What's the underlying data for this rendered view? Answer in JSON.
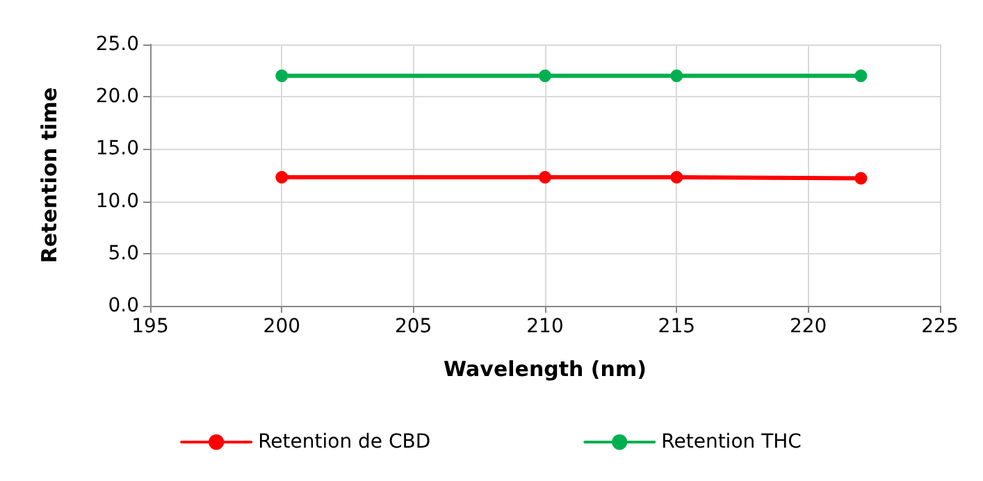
{
  "chart_data": {
    "type": "line",
    "xlabel": "Wavelength (nm)",
    "ylabel": "Retention time",
    "x": [
      200,
      210,
      215,
      222
    ],
    "series": [
      {
        "name": "Retention de CBD",
        "color": "#ff0000",
        "values": [
          12.3,
          12.3,
          12.3,
          12.2
        ]
      },
      {
        "name": "Retention THC",
        "color": "#00b050",
        "values": [
          22.0,
          22.0,
          22.0,
          22.0
        ]
      }
    ],
    "xlim": [
      195,
      225
    ],
    "xticks": [
      195,
      200,
      205,
      210,
      215,
      220,
      225
    ],
    "ylim": [
      0,
      25
    ],
    "yticks": [
      {
        "value": 0,
        "label": "0.0"
      },
      {
        "value": 5,
        "label": "5.0"
      },
      {
        "value": 10,
        "label": "10.0"
      },
      {
        "value": 15,
        "label": "15.0"
      },
      {
        "value": 20,
        "label": "20.0"
      },
      {
        "value": 25,
        "label": "25.0"
      }
    ],
    "grid": true,
    "legend": "bottom",
    "marker": "circle",
    "line_style": "solid"
  }
}
